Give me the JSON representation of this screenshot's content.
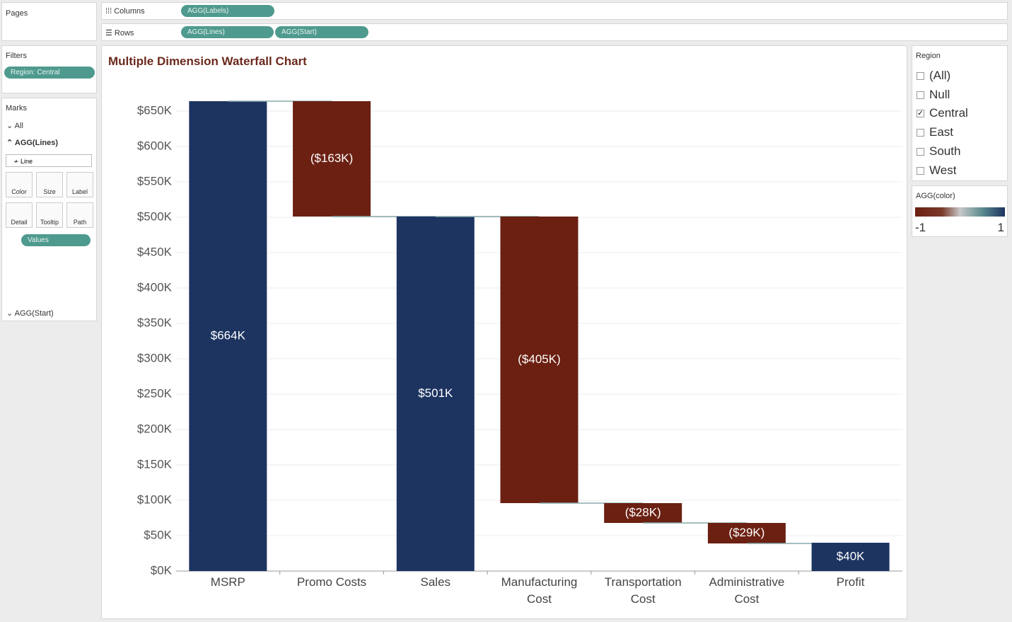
{
  "ui": {
    "pages": "Pages",
    "columns_label": "Columns",
    "columns_pills": [
      "AGG(Labels)"
    ],
    "rows_label": "Rows",
    "rows_pills": [
      "AGG(Lines)",
      "AGG(Start)"
    ],
    "filters": {
      "title": "Filters",
      "pills": [
        "Region: Central"
      ]
    },
    "marks": {
      "title": "Marks",
      "all": "All",
      "lines": "AGG(Lines)",
      "mark_type": "Line",
      "buttons": [
        "Color",
        "Size",
        "Label",
        "Detail",
        "Tooltip",
        "Path"
      ],
      "pill": "Values",
      "start": "AGG(Start)"
    },
    "region": {
      "title": "Region",
      "items": [
        {
          "label": "(All)",
          "checked": false
        },
        {
          "label": "Null",
          "checked": false
        },
        {
          "label": "Central",
          "checked": true
        },
        {
          "label": "East",
          "checked": false
        },
        {
          "label": "South",
          "checked": false
        },
        {
          "label": "West",
          "checked": false
        }
      ]
    },
    "color_legend": {
      "title": "AGG(color)",
      "min": -1,
      "max": 1
    }
  },
  "chart_data": {
    "type": "waterfall",
    "title": "Multiple Dimension Waterfall Chart",
    "categories": [
      "MSRP",
      "Promo Costs",
      "Sales",
      "Manufacturing Cost",
      "Transportation Cost",
      "Administrative Cost",
      "Profit"
    ],
    "values": [
      664000,
      -163000,
      501000,
      -405000,
      -28000,
      -29000,
      40000
    ],
    "value_labels": [
      "$664K",
      "($163K)",
      "$501K",
      "($405K)",
      "($28K)",
      "($29K)",
      "$40K"
    ],
    "positive_color": "#1d3461",
    "negative_color": "#6b2012",
    "ylim": [
      0,
      670000
    ],
    "yticks": [
      {
        "value": 0,
        "label": "$0K"
      },
      {
        "value": 50000,
        "label": "$50K"
      },
      {
        "value": 100000,
        "label": "$100K"
      },
      {
        "value": 150000,
        "label": "$150K"
      },
      {
        "value": 200000,
        "label": "$200K"
      },
      {
        "value": 250000,
        "label": "$250K"
      },
      {
        "value": 300000,
        "label": "$300K"
      },
      {
        "value": 350000,
        "label": "$350K"
      },
      {
        "value": 400000,
        "label": "$400K"
      },
      {
        "value": 450000,
        "label": "$450K"
      },
      {
        "value": 500000,
        "label": "$500K"
      },
      {
        "value": 550000,
        "label": "$550K"
      },
      {
        "value": 600000,
        "label": "$600K"
      },
      {
        "value": 650000,
        "label": "$650K"
      }
    ],
    "grid": true
  }
}
